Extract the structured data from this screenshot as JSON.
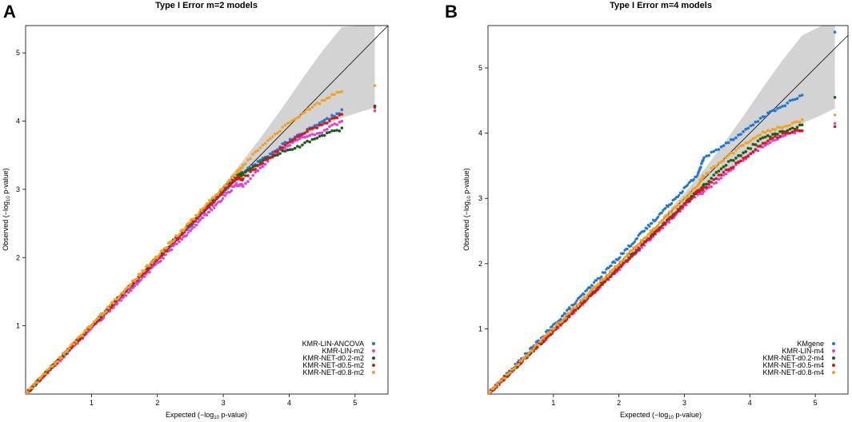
{
  "panels": [
    {
      "letter": "A",
      "title": "Type I Error m=2 models",
      "xlabel_prefix": "Expected (",
      "xlabel_mid": "−log",
      "xlabel_sub": "10",
      "xlabel_suffix": " p-value)",
      "ylabel_prefix": "Observed (",
      "ylabel_mid": "−log",
      "ylabel_sub": "10",
      "ylabel_suffix": " p-value)"
    },
    {
      "letter": "B",
      "title": "Type I Error m=4 models",
      "xlabel_prefix": "Expected (",
      "xlabel_mid": "−log",
      "xlabel_sub": "10",
      "xlabel_suffix": " p-value)",
      "ylabel_prefix": "Observed (",
      "ylabel_mid": "−log",
      "ylabel_sub": "10",
      "ylabel_suffix": " p-value)"
    }
  ],
  "chart_data": [
    {
      "type": "scatter",
      "title": "Type I Error m=2 models",
      "xlabel": "Expected (−log10 p-value)",
      "ylabel": "Observed (−log10 p-value)",
      "xlim": [
        0,
        5.5
      ],
      "ylim": [
        0,
        5.4
      ],
      "xticks": [
        1,
        2,
        3,
        4,
        5
      ],
      "yticks": [
        1,
        2,
        3,
        4,
        5
      ],
      "reference_line": {
        "from": [
          0,
          0
        ],
        "to": [
          5.5,
          5.4
        ]
      },
      "confidence_band": {
        "x": [
          2.7,
          3.0,
          3.3,
          3.6,
          3.9,
          4.2,
          4.5,
          4.8,
          5.1,
          5.3
        ],
        "upper": [
          2.72,
          3.06,
          3.42,
          3.8,
          4.2,
          4.62,
          5.02,
          5.38,
          5.4,
          5.4
        ],
        "lower": [
          2.66,
          2.92,
          3.16,
          3.38,
          3.58,
          3.76,
          3.92,
          4.05,
          4.14,
          4.2
        ]
      },
      "legend_position": "bottom-right",
      "series": [
        {
          "name": "KMR-LIN-ANCOVA",
          "color": "#1e78d8",
          "slope": 0.99,
          "tail": [
            [
              3.3,
              3.25
            ],
            [
              3.6,
              3.45
            ],
            [
              3.9,
              3.65
            ],
            [
              4.2,
              3.82
            ],
            [
              4.5,
              3.98
            ],
            [
              4.8,
              4.15
            ],
            [
              5.3,
              4.22
            ]
          ]
        },
        {
          "name": "KMR-LIN-m2",
          "color": "#e040e0",
          "slope": 0.96,
          "tail": [
            [
              3.3,
              3.05
            ],
            [
              3.6,
              3.35
            ],
            [
              3.9,
              3.6
            ],
            [
              4.2,
              3.75
            ],
            [
              4.5,
              3.85
            ],
            [
              4.8,
              4.0
            ],
            [
              5.3,
              4.15
            ]
          ]
        },
        {
          "name": "KMR-NET-d0.2-m2",
          "color": "#1a5e1a",
          "slope": 1.0,
          "tail": [
            [
              3.3,
              3.22
            ],
            [
              3.6,
              3.42
            ],
            [
              3.9,
              3.55
            ],
            [
              4.2,
              3.65
            ],
            [
              4.5,
              3.8
            ],
            [
              4.8,
              3.88
            ],
            [
              5.3,
              4.22
            ]
          ]
        },
        {
          "name": "KMR-NET-d0.5-m2",
          "color": "#d41818",
          "slope": 0.99,
          "tail": [
            [
              3.3,
              3.15
            ],
            [
              3.6,
              3.4
            ],
            [
              3.9,
              3.62
            ],
            [
              4.2,
              3.82
            ],
            [
              4.5,
              3.95
            ],
            [
              4.8,
              4.1
            ],
            [
              5.3,
              4.2
            ]
          ]
        },
        {
          "name": "KMR-NET-d0.8-m2",
          "color": "#f5a020",
          "slope": 1.01,
          "tail": [
            [
              3.3,
              3.35
            ],
            [
              3.6,
              3.65
            ],
            [
              3.9,
              3.9
            ],
            [
              4.2,
              4.1
            ],
            [
              4.5,
              4.3
            ],
            [
              4.8,
              4.45
            ],
            [
              5.3,
              4.52
            ]
          ]
        }
      ]
    },
    {
      "type": "scatter",
      "title": "Type I Error m=4 models",
      "xlabel": "Expected (−log10 p-value)",
      "ylabel": "Observed (−log10 p-value)",
      "xlim": [
        0,
        5.5
      ],
      "ylim": [
        0,
        5.65
      ],
      "xticks": [
        1,
        2,
        3,
        4,
        5
      ],
      "yticks": [
        1,
        2,
        3,
        4,
        5
      ],
      "reference_line": {
        "from": [
          0,
          0
        ],
        "to": [
          5.5,
          5.5
        ]
      },
      "confidence_band": {
        "x": [
          2.7,
          3.0,
          3.3,
          3.6,
          3.9,
          4.2,
          4.5,
          4.8,
          5.1,
          5.3
        ],
        "upper": [
          2.74,
          3.08,
          3.44,
          3.84,
          4.26,
          4.7,
          5.12,
          5.5,
          5.65,
          5.65
        ],
        "lower": [
          2.66,
          2.92,
          3.17,
          3.4,
          3.62,
          3.82,
          4.0,
          4.15,
          4.28,
          4.38
        ]
      },
      "legend_position": "bottom-right",
      "series": [
        {
          "name": "KMgene",
          "color": "#1e78d8",
          "slope": 1.05,
          "tail": [
            [
              3.3,
              3.62
            ],
            [
              3.6,
              3.82
            ],
            [
              3.9,
              4.02
            ],
            [
              4.2,
              4.25
            ],
            [
              4.5,
              4.42
            ],
            [
              4.8,
              4.58
            ],
            [
              5.3,
              5.55
            ]
          ]
        },
        {
          "name": "KMR-LIN-m4",
          "color": "#e040e0",
          "slope": 0.96,
          "tail": [
            [
              3.3,
              3.1
            ],
            [
              3.6,
              3.35
            ],
            [
              3.9,
              3.6
            ],
            [
              4.2,
              3.8
            ],
            [
              4.5,
              3.95
            ],
            [
              4.8,
              4.05
            ],
            [
              5.3,
              4.15
            ]
          ]
        },
        {
          "name": "KMR-NET-d0.2-m4",
          "color": "#1a5e1a",
          "slope": 0.97,
          "tail": [
            [
              3.3,
              3.2
            ],
            [
              3.6,
              3.5
            ],
            [
              3.9,
              3.7
            ],
            [
              4.2,
              3.92
            ],
            [
              4.5,
              4.02
            ],
            [
              4.8,
              4.12
            ],
            [
              5.3,
              4.55
            ]
          ]
        },
        {
          "name": "KMR-NET-d0.5-m4",
          "color": "#d41818",
          "slope": 0.97,
          "tail": [
            [
              3.3,
              3.15
            ],
            [
              3.6,
              3.4
            ],
            [
              3.9,
              3.6
            ],
            [
              4.2,
              3.85
            ],
            [
              4.5,
              3.98
            ],
            [
              4.8,
              4.05
            ],
            [
              5.3,
              4.1
            ]
          ]
        },
        {
          "name": "KMR-NET-d0.8-m4",
          "color": "#f5a020",
          "slope": 1.0,
          "tail": [
            [
              3.3,
              3.35
            ],
            [
              3.6,
              3.6
            ],
            [
              3.9,
              3.82
            ],
            [
              4.2,
              4.0
            ],
            [
              4.5,
              4.1
            ],
            [
              4.8,
              4.2
            ],
            [
              5.3,
              4.28
            ]
          ]
        }
      ]
    }
  ]
}
